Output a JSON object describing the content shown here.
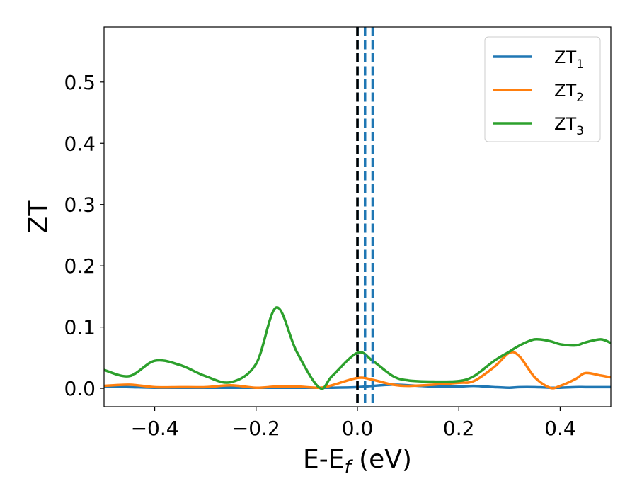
{
  "chart_data": {
    "type": "line",
    "xlabel": "E-E",
    "xlabel_sub": "f",
    "xlabel_unit": " (eV)",
    "ylabel": "ZT",
    "xlim": [
      -0.5,
      0.5
    ],
    "ylim": [
      -0.03,
      0.59
    ],
    "xticks": [
      -0.4,
      -0.2,
      0.0,
      0.2,
      0.4
    ],
    "xtick_labels": [
      "−0.4",
      "−0.2",
      "0.0",
      "0.2",
      "0.4"
    ],
    "yticks": [
      0.0,
      0.1,
      0.2,
      0.3,
      0.4,
      0.5
    ],
    "ytick_labels": [
      "0.0",
      "0.1",
      "0.2",
      "0.3",
      "0.4",
      "0.5"
    ],
    "grid": false,
    "legend_placement": "top-right",
    "x": [
      -0.5,
      -0.45,
      -0.4,
      -0.35,
      -0.3,
      -0.25,
      -0.2,
      -0.16,
      -0.12,
      -0.075,
      -0.05,
      0.0,
      0.03,
      0.07,
      0.1,
      0.15,
      0.2,
      0.23,
      0.27,
      0.3,
      0.32,
      0.35,
      0.38,
      0.4,
      0.43,
      0.45,
      0.48,
      0.5
    ],
    "series": [
      {
        "name": "ZT",
        "name_sub": "1",
        "color": "#1f77b4",
        "values": [
          0.003,
          0.002,
          0.001,
          0.001,
          0.001,
          0.001,
          0.001,
          0.001,
          0.001,
          0.001,
          0.001,
          0.002,
          0.004,
          0.006,
          0.005,
          0.003,
          0.003,
          0.004,
          0.002,
          0.001,
          0.002,
          0.002,
          0.001,
          0.001,
          0.002,
          0.002,
          0.002,
          0.002
        ]
      },
      {
        "name": "ZT",
        "name_sub": "2",
        "color": "#ff7f0e",
        "values": [
          0.004,
          0.006,
          0.002,
          0.002,
          0.002,
          0.005,
          0.001,
          0.003,
          0.003,
          0.001,
          0.005,
          0.017,
          0.014,
          0.006,
          0.004,
          0.006,
          0.009,
          0.012,
          0.035,
          0.058,
          0.052,
          0.018,
          0.001,
          0.004,
          0.015,
          0.025,
          0.021,
          0.018
        ]
      },
      {
        "name": "ZT",
        "name_sub": "3",
        "color": "#2ca02c",
        "values": [
          0.03,
          0.02,
          0.045,
          0.038,
          0.02,
          0.01,
          0.04,
          0.132,
          0.06,
          0.001,
          0.02,
          0.058,
          0.045,
          0.02,
          0.013,
          0.011,
          0.012,
          0.02,
          0.045,
          0.06,
          0.07,
          0.08,
          0.077,
          0.072,
          0.07,
          0.075,
          0.08,
          0.074
        ]
      }
    ],
    "vlines": [
      {
        "x": 0.0,
        "color": "#000000",
        "style": "dashed"
      },
      {
        "x": 0.0,
        "color": "#1f77b4",
        "style": "dashed"
      },
      {
        "x": 0.015,
        "color": "#1f77b4",
        "style": "dashed"
      },
      {
        "x": 0.03,
        "color": "#1f77b4",
        "style": "dashed"
      }
    ]
  }
}
